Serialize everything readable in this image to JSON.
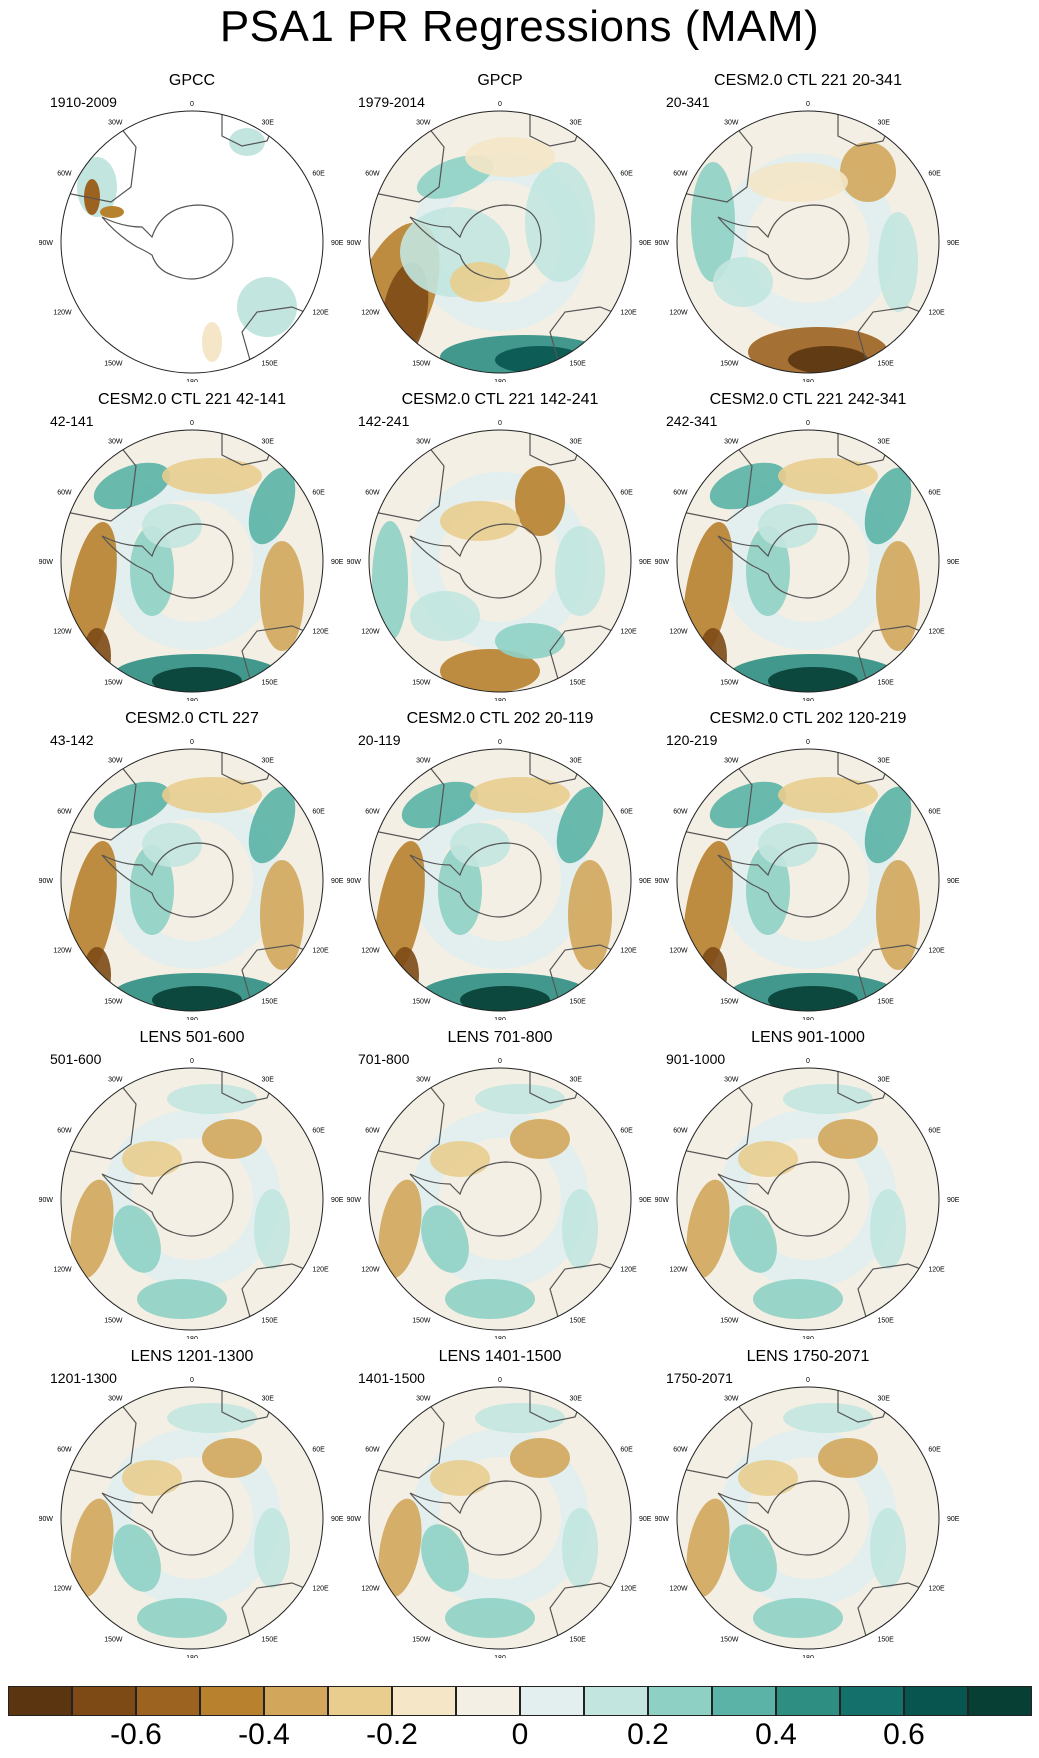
{
  "title": "PSA1 PR Regressions (MAM)",
  "lon_labels": [
    "0",
    "30E",
    "60E",
    "90E",
    "120E",
    "150E",
    "180",
    "150W",
    "120W",
    "90W",
    "60W",
    "30W"
  ],
  "panels": [
    {
      "title": "GPCC",
      "period": "1910-2009",
      "pattern": "gpcc"
    },
    {
      "title": "GPCP",
      "period": "1979-2014",
      "pattern": "gpcp"
    },
    {
      "title": "CESM2.0 CTL 221 20-341",
      "period": "20-341",
      "pattern": "ctl_a"
    },
    {
      "title": "CESM2.0 CTL 221 42-141",
      "period": "42-141",
      "pattern": "strong"
    },
    {
      "title": "CESM2.0 CTL 221 142-241",
      "period": "142-241",
      "pattern": "mixed"
    },
    {
      "title": "CESM2.0 CTL 221 242-341",
      "period": "242-341",
      "pattern": "strong"
    },
    {
      "title": "CESM2.0 CTL 227",
      "period": "43-142",
      "pattern": "strong"
    },
    {
      "title": "CESM2.0 CTL 202 20-119",
      "period": "20-119",
      "pattern": "strong"
    },
    {
      "title": "CESM2.0 CTL 202 120-219",
      "period": "120-219",
      "pattern": "strong"
    },
    {
      "title": "LENS 501-600",
      "period": "501-600",
      "pattern": "weak"
    },
    {
      "title": "LENS 701-800",
      "period": "701-800",
      "pattern": "weak"
    },
    {
      "title": "LENS 901-1000",
      "period": "901-1000",
      "pattern": "weak"
    },
    {
      "title": "LENS 1201-1300",
      "period": "1201-1300",
      "pattern": "weak"
    },
    {
      "title": "LENS 1401-1500",
      "period": "1401-1500",
      "pattern": "weak"
    },
    {
      "title": "LENS 1750-2071",
      "period": "1750-2071",
      "pattern": "weak"
    }
  ],
  "colorbar": {
    "colors": [
      "#5a3510",
      "#7d4a16",
      "#9c6220",
      "#b8812e",
      "#d2a75c",
      "#e8cd8e",
      "#f4e6c6",
      "#f4efe4",
      "#e2efee",
      "#c2e5df",
      "#8fd0c4",
      "#5ab3a6",
      "#2f8e82",
      "#14706a",
      "#08554f",
      "#073f34"
    ],
    "labels": [
      "-0.6",
      "-0.4",
      "-0.2",
      "0",
      "0.2",
      "0.4",
      "0.6"
    ]
  }
}
